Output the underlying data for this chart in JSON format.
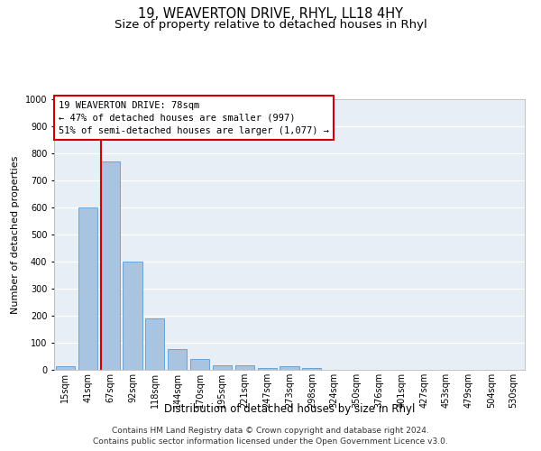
{
  "title": "19, WEAVERTON DRIVE, RHYL, LL18 4HY",
  "subtitle": "Size of property relative to detached houses in Rhyl",
  "xlabel": "Distribution of detached houses by size in Rhyl",
  "ylabel": "Number of detached properties",
  "categories": [
    "15sqm",
    "41sqm",
    "67sqm",
    "92sqm",
    "118sqm",
    "144sqm",
    "170sqm",
    "195sqm",
    "221sqm",
    "247sqm",
    "273sqm",
    "298sqm",
    "324sqm",
    "350sqm",
    "376sqm",
    "401sqm",
    "427sqm",
    "453sqm",
    "479sqm",
    "504sqm",
    "530sqm"
  ],
  "values": [
    15,
    600,
    770,
    400,
    190,
    78,
    40,
    17,
    17,
    8,
    13,
    8,
    0,
    0,
    0,
    0,
    0,
    0,
    0,
    0,
    0
  ],
  "bar_color": "#a8c4e0",
  "bar_edge_color": "#5b9bd5",
  "vline_color": "#cc0000",
  "vline_x_index": 2,
  "annotation_line1": "19 WEAVERTON DRIVE: 78sqm",
  "annotation_line2": "← 47% of detached houses are smaller (997)",
  "annotation_line3": "51% of semi-detached houses are larger (1,077) →",
  "annotation_box_color": "#cc0000",
  "ylim": [
    0,
    1000
  ],
  "yticks": [
    0,
    100,
    200,
    300,
    400,
    500,
    600,
    700,
    800,
    900,
    1000
  ],
  "background_color": "#e8eef5",
  "grid_color": "#ffffff",
  "footer_line1": "Contains HM Land Registry data © Crown copyright and database right 2024.",
  "footer_line2": "Contains public sector information licensed under the Open Government Licence v3.0.",
  "title_fontsize": 10.5,
  "subtitle_fontsize": 9.5,
  "xlabel_fontsize": 8.5,
  "ylabel_fontsize": 8,
  "tick_fontsize": 7,
  "annotation_fontsize": 7.5,
  "footer_fontsize": 6.5
}
